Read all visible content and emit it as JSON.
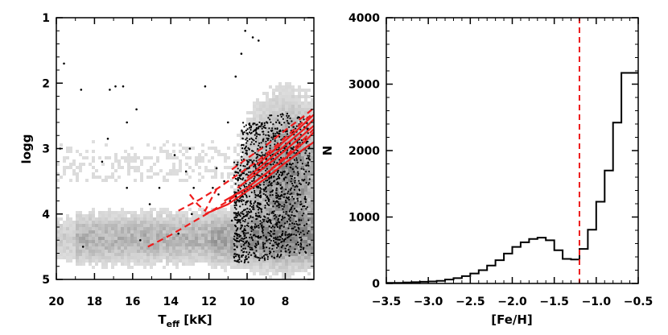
{
  "chart_data": [
    {
      "type": "scatter",
      "title": "",
      "xlabel_main": "T",
      "xlabel_sub": "eff",
      "xlabel_unit": " [kK]",
      "ylabel": "logg",
      "xlim": [
        20,
        6.5
      ],
      "ylim": [
        5,
        1
      ],
      "x_ticks": [
        20,
        18,
        16,
        14,
        12,
        10,
        8
      ],
      "y_ticks": [
        1,
        2,
        3,
        4,
        5
      ],
      "background_density": "grey 2D histogram of the full sample, densest along logg 4.0-4.6 for Teff 6-12 kK and logg 2.5-4.5 for Teff 6-10 kK",
      "points_color": "#000000",
      "points": [
        [
          19.6,
          1.7
        ],
        [
          18.7,
          2.1
        ],
        [
          17.2,
          2.1
        ],
        [
          16.9,
          2.05
        ],
        [
          16.5,
          2.05
        ],
        [
          15.8,
          2.4
        ],
        [
          16.3,
          2.6
        ],
        [
          17.3,
          2.85
        ],
        [
          19.8,
          3.0
        ],
        [
          17.6,
          3.2
        ],
        [
          13.8,
          3.1
        ],
        [
          13.2,
          3.35
        ],
        [
          14.6,
          3.6
        ],
        [
          16.3,
          3.6
        ],
        [
          15.1,
          3.85
        ],
        [
          13.0,
          3.0
        ],
        [
          12.8,
          3.6
        ],
        [
          12.9,
          4.0
        ],
        [
          13.6,
          4.3
        ],
        [
          15.6,
          4.4
        ],
        [
          18.6,
          4.5
        ],
        [
          11.6,
          3.3
        ],
        [
          11.8,
          3.6
        ],
        [
          12.2,
          2.05
        ],
        [
          11.5,
          3.7
        ],
        [
          11.2,
          3.5
        ],
        [
          10.9,
          3.8
        ],
        [
          10.8,
          4.1
        ],
        [
          11.0,
          2.6
        ],
        [
          10.6,
          1.9
        ],
        [
          10.1,
          1.2
        ],
        [
          9.7,
          1.3
        ],
        [
          9.4,
          1.35
        ],
        [
          10.3,
          1.55
        ]
      ],
      "curves_color": "#ee1c1c",
      "curves": [
        {
          "style": "solid",
          "x": [
            12.2,
            11,
            10,
            9,
            8,
            7,
            6.5
          ],
          "y": [
            4.0,
            3.85,
            3.65,
            3.45,
            3.22,
            3.0,
            2.9
          ]
        },
        {
          "style": "solid",
          "x": [
            11.2,
            10,
            9,
            8,
            7,
            6.5
          ],
          "y": [
            3.8,
            3.6,
            3.38,
            3.15,
            2.9,
            2.75
          ]
        },
        {
          "style": "solid",
          "x": [
            10.5,
            9.5,
            8.5,
            7.5,
            6.5
          ],
          "y": [
            3.6,
            3.38,
            3.15,
            2.9,
            2.65
          ]
        },
        {
          "style": "solid",
          "x": [
            10,
            9,
            8,
            7,
            6.5
          ],
          "y": [
            3.45,
            3.2,
            2.95,
            2.7,
            2.55
          ]
        },
        {
          "style": "solid",
          "x": [
            9.5,
            8.5,
            7.5,
            6.5
          ],
          "y": [
            3.25,
            3.0,
            2.75,
            2.48
          ]
        },
        {
          "style": "dashed",
          "x": [
            15.2,
            14,
            13,
            12,
            11,
            10,
            9,
            8,
            7,
            6.5
          ],
          "y": [
            4.5,
            4.32,
            4.15,
            3.98,
            3.8,
            3.6,
            3.38,
            3.12,
            2.85,
            2.7
          ]
        },
        {
          "style": "dashed",
          "x": [
            13.6,
            12.5,
            11.5,
            10.5,
            9.5,
            8.5,
            7.5,
            6.5
          ],
          "y": [
            3.95,
            3.78,
            3.6,
            3.4,
            3.2,
            2.96,
            2.7,
            2.45
          ]
        },
        {
          "style": "dashed",
          "x": [
            13.0,
            12.6,
            12.2,
            11.9,
            11.6
          ],
          "y": [
            3.7,
            3.85,
            3.95,
            3.78,
            3.62
          ]
        },
        {
          "style": "dashed",
          "x": [
            10.8,
            10,
            9,
            8,
            7,
            6.5
          ],
          "y": [
            3.32,
            3.15,
            2.95,
            2.72,
            2.5,
            2.38
          ]
        }
      ]
    },
    {
      "type": "histogram",
      "title": "",
      "xlabel": "[Fe/H]",
      "ylabel": "N",
      "xlim": [
        -3.5,
        -0.5
      ],
      "ylim": [
        0,
        4000
      ],
      "x_ticks": [
        -3.5,
        -3.0,
        -2.5,
        -2.0,
        -1.5,
        -1.0,
        -0.5
      ],
      "x_tick_labels": [
        "−3.5",
        "−3.0",
        "−2.5",
        "−2.0",
        "−1.5",
        "−1.0",
        "−0.5"
      ],
      "y_ticks": [
        0,
        1000,
        2000,
        3000,
        4000
      ],
      "bin_edges": [
        -3.5,
        -3.4,
        -3.3,
        -3.2,
        -3.1,
        -3.0,
        -2.9,
        -2.8,
        -2.7,
        -2.6,
        -2.5,
        -2.4,
        -2.3,
        -2.2,
        -2.1,
        -2.0,
        -1.9,
        -1.8,
        -1.7,
        -1.6,
        -1.5,
        -1.4,
        -1.3,
        -1.2,
        -1.1,
        -1.0,
        -0.9,
        -0.8,
        -0.7,
        -0.6,
        -0.5
      ],
      "counts": [
        10,
        10,
        15,
        20,
        25,
        30,
        40,
        60,
        80,
        110,
        150,
        200,
        270,
        350,
        450,
        550,
        620,
        670,
        690,
        650,
        500,
        370,
        360,
        520,
        810,
        1230,
        1700,
        2420,
        3170,
        3170
      ],
      "vline": {
        "x": -1.2,
        "style": "dashed",
        "color": "#ee1c1c"
      },
      "line_color": "#000000"
    }
  ]
}
